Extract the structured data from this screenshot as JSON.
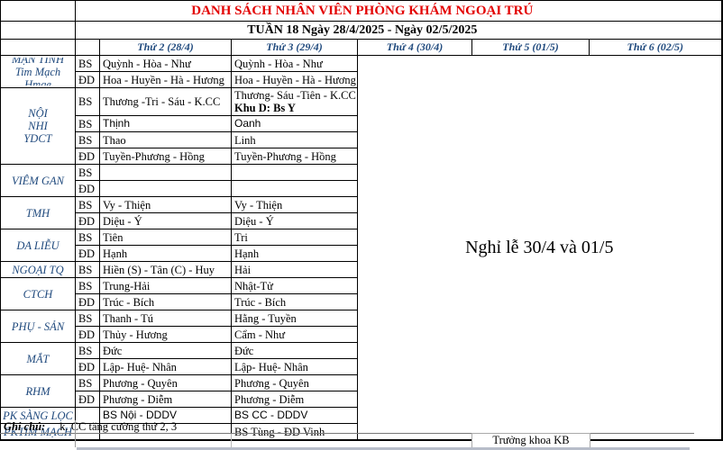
{
  "page": {
    "title": "DANH SÁCH NHÂN VIÊN PHÒNG KHÁM NGOẠI TRÚ",
    "subtitle": "TUẦN 18 Ngày 28/4/2025 - Ngày 02/5/2025",
    "holiday_note": "Nghỉ lễ 30/4 và 01/5",
    "footer_note_label": "Ghi chú:",
    "footer_note_text": "k. CC tăng cường thứ 2, 3",
    "signature": "Trưởng khoa KB"
  },
  "colors": {
    "title_red": "#e30000",
    "header_blue": "#1F497D"
  },
  "header": {
    "days": [
      "Thứ 2 (28/4)",
      "Thứ 3 (29/4)",
      "Thứ 4 (30/4)",
      "Thứ 5 (01/5)",
      "Thứ 6 (02/5)"
    ]
  },
  "groups": [
    {
      "label": "MẠN TÍNH\nTim Mạch\nHmge",
      "rows": [
        {
          "role": "BS",
          "thu2": "Quỳnh - Hòa - Như",
          "thu3": "Quỳnh - Hòa - Như"
        },
        {
          "role": "ĐD",
          "thu2": "Hoa - Huyền - Hà - Hương",
          "thu3": "Hoa - Huyền - Hà - Hương"
        }
      ]
    },
    {
      "label": "NỘI\nNHI\nYDCT",
      "rows": [
        {
          "role": "BS",
          "tall": true,
          "thu2": "Thương  -Tri - Sáu - K.CC",
          "thu3": {
            "lines": [
              "Thương- Sáu -Tiên -  K.CC",
              "Khu D: Bs Y"
            ]
          }
        },
        {
          "role": "BS",
          "sans": true,
          "thu2": "Thịnh",
          "thu3": "Oanh"
        },
        {
          "role": "BS",
          "thu2": "Thao",
          "thu3": "Linh"
        },
        {
          "role": "ĐD",
          "thu2": "Tuyền-Phương - Hồng",
          "thu3": "Tuyền-Phương - Hồng"
        }
      ]
    },
    {
      "label": "VIÊM GAN",
      "rows": [
        {
          "role": "BS",
          "thu2": "",
          "thu3": ""
        },
        {
          "role": "ĐD",
          "thu2": "",
          "thu3": ""
        }
      ]
    },
    {
      "label": "TMH",
      "rows": [
        {
          "role": "BS",
          "thu2": " Vy - Thiện",
          "thu3": " Vy - Thiện"
        },
        {
          "role": "ĐD",
          "thu2": "Diệu - Ý",
          "thu3": "Diệu - Ý"
        }
      ]
    },
    {
      "label": "DA LIỄU",
      "rows": [
        {
          "role": "BS",
          "thu2": "Tiên",
          "thu3": "Tri"
        },
        {
          "role": "ĐD",
          "thu2": "Hạnh",
          "thu3": "Hạnh"
        }
      ]
    },
    {
      "label": "NGOẠI TQ",
      "rows": [
        {
          "role": "BS",
          "thu2": "Hiền (S) - Tân (C) - Huy",
          "thu3": "Hải"
        }
      ]
    },
    {
      "label": "CTCH",
      "rows": [
        {
          "role": "BS",
          "thu2": "Trung-Hải",
          "thu3": "Nhật-Tử"
        },
        {
          "role": "ĐD",
          "thu2": " Trúc - Bích",
          "thu3": " Trúc - Bích"
        }
      ]
    },
    {
      "label": "PHỤ - SẢN",
      "rows": [
        {
          "role": "BS",
          "thu2": "Thanh - Tú",
          "thu3": "Hằng - Tuyền"
        },
        {
          "role": "ĐD",
          "thu2": "Thủy - Hương",
          "thu3": " Cẩm - Như"
        }
      ]
    },
    {
      "label": "MẮT",
      "rows": [
        {
          "role": "BS",
          "thu2": "Đức",
          "thu3": "Đức"
        },
        {
          "role": "ĐD",
          "thu2": "Lập- Huệ- Nhân",
          "thu3": "Lập- Huệ- Nhân"
        }
      ]
    },
    {
      "label": "RHM",
      "rows": [
        {
          "role": "BS",
          "thu2": "Phương - Quyên",
          "thu3": "Phương - Quyên"
        },
        {
          "role": "ĐD",
          "thu2": "Phương - Diễm",
          "thu3": "Phương - Diễm"
        }
      ]
    },
    {
      "label": "PK SÀNG LỌC",
      "rows": [
        {
          "role": "",
          "sans": true,
          "thu2": "BS Nội - DDDV",
          "thu3": "BS CC - DDDV"
        }
      ]
    },
    {
      "label": "PKTIM MẠCH",
      "rows": [
        {
          "role": "",
          "thu2": "",
          "thu3": "BS Tùng - ĐD Vinh"
        }
      ]
    }
  ]
}
